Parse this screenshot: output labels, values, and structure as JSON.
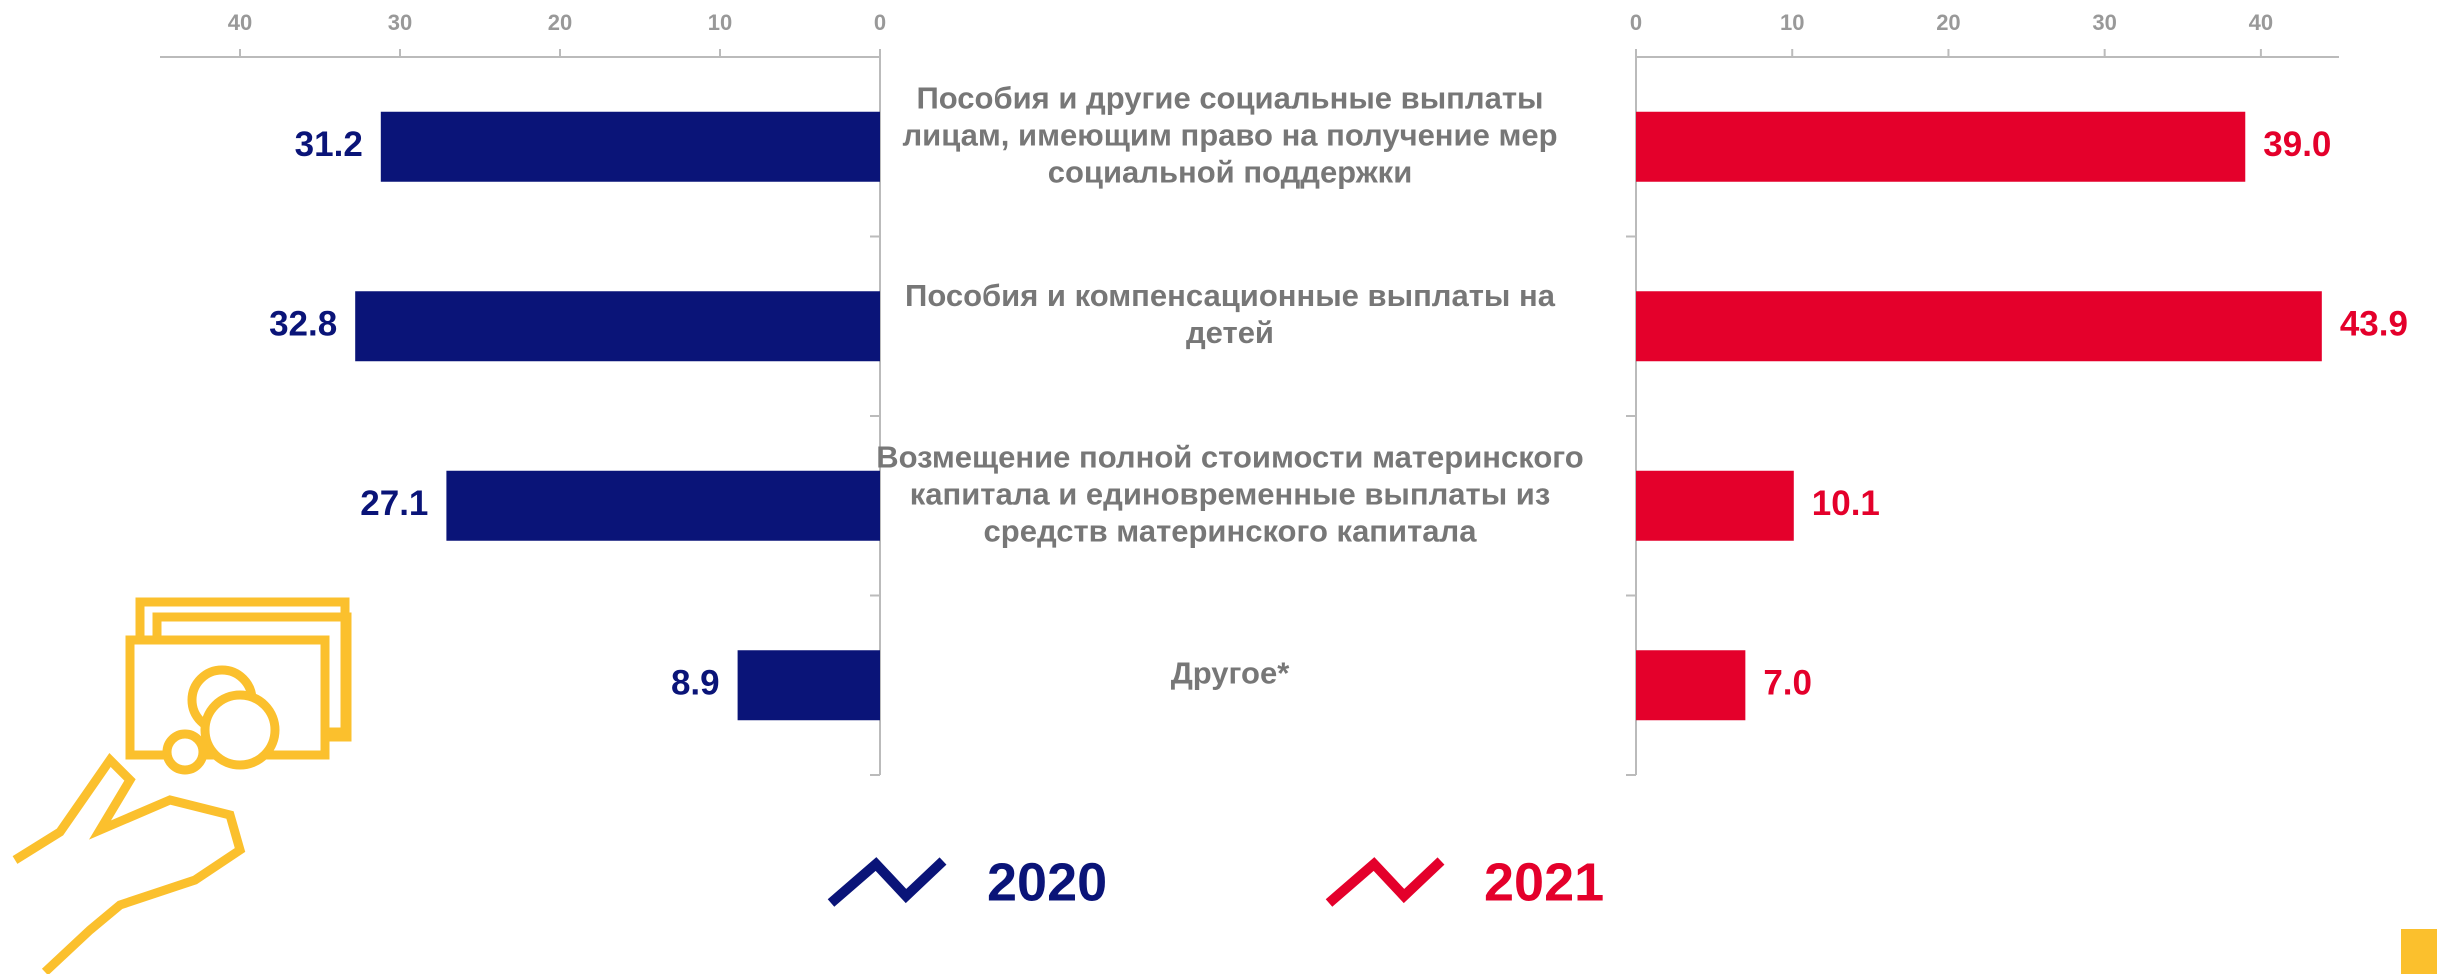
{
  "chart_data": {
    "type": "bar",
    "categories": [
      "Пособия и другие социальные выплаты лицам, имеющим право на получение мер социальной поддержки",
      "Пособия и компенсационные выплаты на детей",
      "Возмещение полной стоимости материнского капитала и единовременные выплаты из средств материнского капитала",
      "Другое*"
    ],
    "series": [
      {
        "name": "2020",
        "color": "#0a1478",
        "values": [
          31.2,
          32.8,
          27.1,
          8.9
        ],
        "value_labels": [
          "31.2",
          "32.8",
          "27.1",
          "8.9"
        ]
      },
      {
        "name": "2021",
        "color": "#e4002b",
        "values": [
          39.0,
          43.9,
          10.1,
          7.0
        ],
        "value_labels": [
          "39.0",
          "43.9",
          "10.1",
          "7.0"
        ]
      }
    ],
    "xlim": [
      0,
      45
    ],
    "xticks": [
      0,
      10,
      20,
      30,
      40
    ]
  }
}
